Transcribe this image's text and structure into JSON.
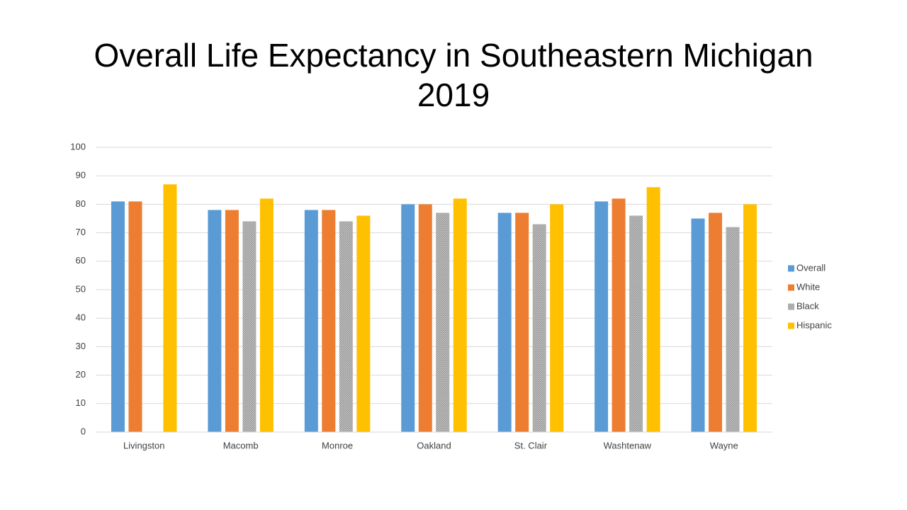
{
  "chart_data": {
    "type": "bar",
    "title": "Overall Life Expectancy in Southeastern Michigan 2019",
    "categories": [
      "Livingston",
      "Macomb",
      "Monroe",
      "Oakland",
      "St. Clair",
      "Washtenaw",
      "Wayne"
    ],
    "series": [
      {
        "name": "Overall",
        "color": "#5b9bd5",
        "values": [
          81,
          78,
          78,
          80,
          77,
          81,
          75
        ]
      },
      {
        "name": "White",
        "color": "#ed7d31",
        "values": [
          81,
          78,
          78,
          80,
          77,
          82,
          77
        ]
      },
      {
        "name": "Black",
        "color": "#a5a5a5",
        "values": [
          null,
          74,
          74,
          77,
          73,
          76,
          72
        ]
      },
      {
        "name": "Hispanic",
        "color": "#ffc000",
        "values": [
          87,
          82,
          76,
          82,
          80,
          86,
          80
        ]
      }
    ],
    "ylim": [
      0,
      100
    ],
    "yticks": [
      0,
      10,
      20,
      30,
      40,
      50,
      60,
      70,
      80,
      90,
      100
    ],
    "grid": true,
    "legend": "right"
  }
}
